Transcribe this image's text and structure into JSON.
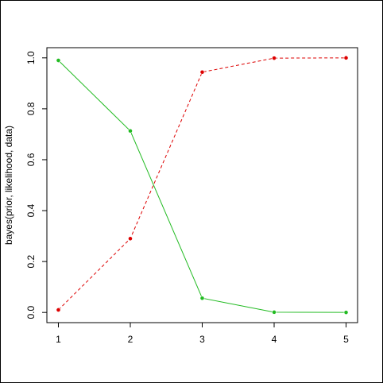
{
  "chart_data": {
    "type": "line",
    "y_label": "bayes(prior, likelihood, data)",
    "x": [
      1,
      2,
      3,
      4,
      5
    ],
    "series": [
      {
        "color": "#dd0000",
        "dash": true,
        "values": [
          0.01,
          0.29,
          0.944,
          0.999,
          1.0
        ]
      },
      {
        "color": "#22bb22",
        "dash": false,
        "values": [
          0.99,
          0.713,
          0.056,
          0.001,
          0.0
        ]
      }
    ],
    "xlim": [
      0.84,
      5.16
    ],
    "ylim": [
      -0.04,
      1.04
    ],
    "xticks": [
      1,
      2,
      3,
      4,
      5
    ],
    "yticks": [
      {
        "value": 0,
        "label": "0.0"
      },
      0.2,
      0.4,
      0.6,
      0.8,
      {
        "value": 1,
        "label": "1.0"
      }
    ],
    "grid": false
  }
}
